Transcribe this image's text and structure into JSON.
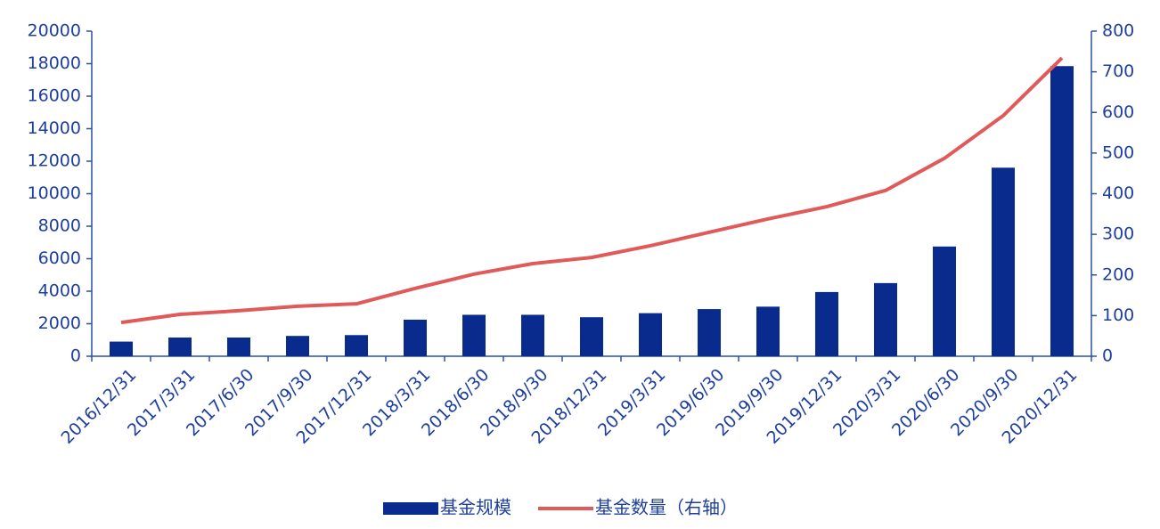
{
  "chart_data": {
    "type": "bar-line",
    "categories": [
      "2016/12/31",
      "2017/3/31",
      "2017/6/30",
      "2017/9/30",
      "2017/12/31",
      "2018/3/31",
      "2018/6/30",
      "2018/9/30",
      "2018/12/31",
      "2019/3/31",
      "2019/6/30",
      "2019/9/30",
      "2019/12/31",
      "2020/3/31",
      "2020/6/30",
      "2020/9/30",
      "2020/12/31"
    ],
    "series": [
      {
        "name": "基金规模",
        "type": "bar",
        "color": "#0a2b8e",
        "values": [
          900,
          1150,
          1150,
          1250,
          1300,
          2250,
          2550,
          2550,
          2400,
          2650,
          2900,
          3050,
          3950,
          4500,
          6750,
          11600,
          17850
        ]
      },
      {
        "name": "基金数量（右轴）",
        "type": "line",
        "axis": "y2",
        "color": "#e05a5a",
        "values": [
          83,
          103,
          112,
          123,
          129,
          167,
          202,
          228,
          243,
          272,
          305,
          338,
          368,
          408,
          487,
          592,
          734
        ]
      }
    ],
    "ylim": [
      0,
      20000
    ],
    "yticks": [
      0,
      2000,
      4000,
      6000,
      8000,
      10000,
      12000,
      14000,
      16000,
      18000,
      20000
    ],
    "y2lim": [
      0,
      800
    ],
    "y2ticks": [
      0,
      100,
      200,
      300,
      400,
      500,
      600,
      700,
      800
    ],
    "grid": false,
    "legend": "bottom"
  }
}
